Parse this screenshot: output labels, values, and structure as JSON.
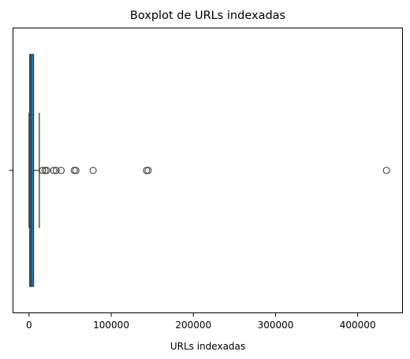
{
  "chart_data": {
    "type": "boxplot",
    "orientation": "horizontal",
    "title": "Boxplot de URLs indexadas",
    "xlabel": "URLs indexadas",
    "ylabel": "",
    "xlim": [
      -20000,
      455000
    ],
    "x_ticks": [
      0,
      100000,
      200000,
      300000,
      400000
    ],
    "x_tick_labels": [
      "0",
      "100000",
      "200000",
      "300000",
      "400000"
    ],
    "grid": false,
    "legend": "none",
    "box": {
      "min": 0,
      "q1": 800,
      "median": 2500,
      "q3": 5500,
      "max": 12500,
      "color": "#1f77b4"
    },
    "outliers": [
      16500,
      19500,
      21500,
      30000,
      33000,
      39000,
      55000,
      57000,
      78000,
      143000,
      145000,
      435000
    ]
  }
}
